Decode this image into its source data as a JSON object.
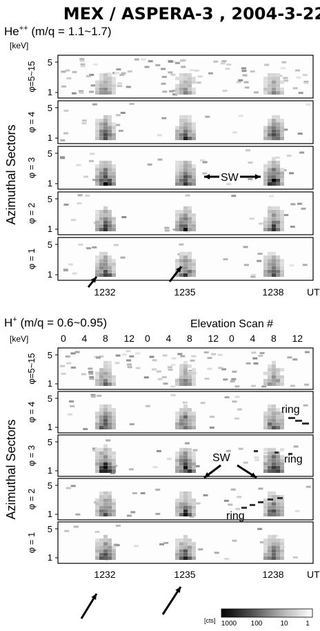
{
  "chart_data": {
    "type": "heatmap",
    "title": "MEX / ASPERA-3 , 2004-3-22",
    "panel_unit": "[keV]",
    "y_axis_ticks": [
      "5",
      "1"
    ],
    "row_labels": [
      "φ=5~15",
      "φ = 4",
      "φ = 3",
      "φ = 2",
      "φ = 1"
    ],
    "side_label": "Azimuthal Sectors",
    "x_axis_ut_ticks": [
      "1232",
      "1235",
      "1238"
    ],
    "x_axis_ut_label": "UT",
    "elevation_scan_label": "Elevation Scan #",
    "elevation_scan_ticks": [
      "0",
      "4",
      "8",
      "12",
      "0",
      "4",
      "8",
      "12",
      "0",
      "4",
      "8",
      "12"
    ],
    "colorbar": {
      "unit": "[cts]",
      "ticks": [
        "1000",
        "100",
        "10",
        "1"
      ],
      "scale": "log",
      "colors": [
        "#000000",
        "#ffffff"
      ]
    },
    "blocks": [
      {
        "name": "He++",
        "species_main": "He",
        "species_sup": "++",
        "mq": " (m/q = 1.1~1.7)",
        "annotations": [
          {
            "text": "SW",
            "row": 2,
            "near_ut": "1235-1238"
          }
        ]
      },
      {
        "name": "H+",
        "species_main": "H",
        "species_sup": "+",
        "mq": " (m/q = 0.6~0.95)",
        "annotations": [
          {
            "text": "ring",
            "row": 1,
            "near_ut": "1238"
          },
          {
            "text": "ring",
            "row": 2,
            "near_ut": "1238"
          },
          {
            "text": "ring",
            "row": 3,
            "near_ut": "1237"
          },
          {
            "text": "SW",
            "row": 2,
            "near_ut": "1235-1238"
          }
        ]
      }
    ]
  }
}
